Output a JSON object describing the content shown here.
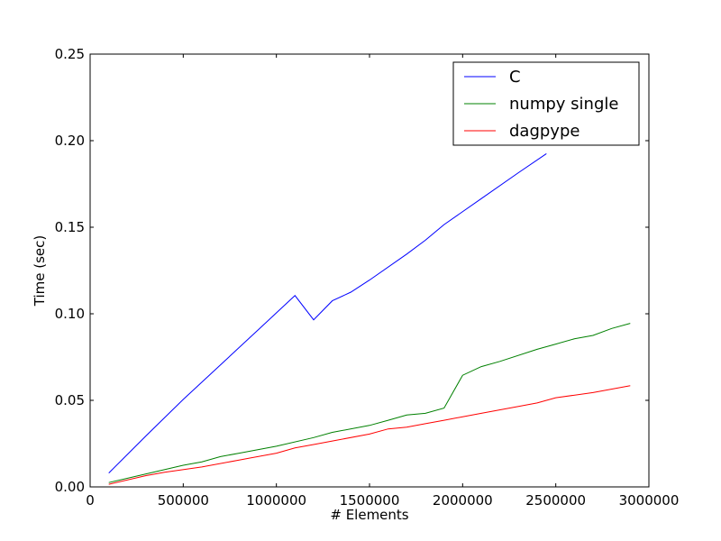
{
  "chart_data": {
    "type": "line",
    "xlabel": "# Elements",
    "ylabel": "Time (sec)",
    "xlim": [
      0,
      3000000
    ],
    "ylim": [
      0,
      0.25
    ],
    "xticks": [
      0,
      500000,
      1000000,
      1500000,
      2000000,
      2500000,
      3000000
    ],
    "xtick_labels": [
      "0",
      "500000",
      "1000000",
      "1500000",
      "2000000",
      "2500000",
      "3000000"
    ],
    "yticks": [
      0,
      0.05,
      0.1,
      0.15,
      0.2,
      0.25
    ],
    "ytick_labels": [
      "0.00",
      "0.05",
      "0.10",
      "0.15",
      "0.20",
      "0.25"
    ],
    "grid": false,
    "legend_position": "top-right",
    "series": [
      {
        "name": "C",
        "color": "#0000ff",
        "x": [
          100000,
          300000,
          500000,
          700000,
          900000,
          1100000,
          1200000,
          1300000,
          1400000,
          1500000,
          1700000,
          1800000,
          1900000,
          2100000,
          2300000,
          2450000
        ],
        "y": [
          0.008,
          0.0295,
          0.0505,
          0.0705,
          0.0905,
          0.1105,
          0.0965,
          0.1075,
          0.1125,
          0.1195,
          0.1345,
          0.1425,
          0.1515,
          0.1665,
          0.1815,
          0.1925
        ]
      },
      {
        "name": "numpy single",
        "color": "#008000",
        "x": [
          100000,
          300000,
          500000,
          600000,
          700000,
          800000,
          1000000,
          1200000,
          1300000,
          1500000,
          1600000,
          1700000,
          1800000,
          1900000,
          2000000,
          2100000,
          2200000,
          2400000,
          2500000,
          2600000,
          2700000,
          2800000,
          2900000
        ],
        "y": [
          0.0025,
          0.0075,
          0.0125,
          0.0145,
          0.0175,
          0.0195,
          0.0235,
          0.0285,
          0.0315,
          0.0355,
          0.0385,
          0.0415,
          0.0425,
          0.0455,
          0.0645,
          0.0695,
          0.0725,
          0.0795,
          0.0825,
          0.0855,
          0.0875,
          0.0915,
          0.0945
        ]
      },
      {
        "name": "dagpype",
        "color": "#ff0000",
        "x": [
          100000,
          300000,
          400000,
          600000,
          800000,
          1000000,
          1100000,
          1200000,
          1300000,
          1500000,
          1600000,
          1700000,
          1800000,
          1900000,
          2000000,
          2100000,
          2300000,
          2400000,
          2500000,
          2700000,
          2900000
        ],
        "y": [
          0.0015,
          0.0065,
          0.0085,
          0.0115,
          0.0155,
          0.0195,
          0.0225,
          0.0245,
          0.0265,
          0.0305,
          0.0335,
          0.0345,
          0.0365,
          0.0385,
          0.0405,
          0.0425,
          0.0465,
          0.0485,
          0.0515,
          0.0545,
          0.0585
        ]
      }
    ]
  }
}
